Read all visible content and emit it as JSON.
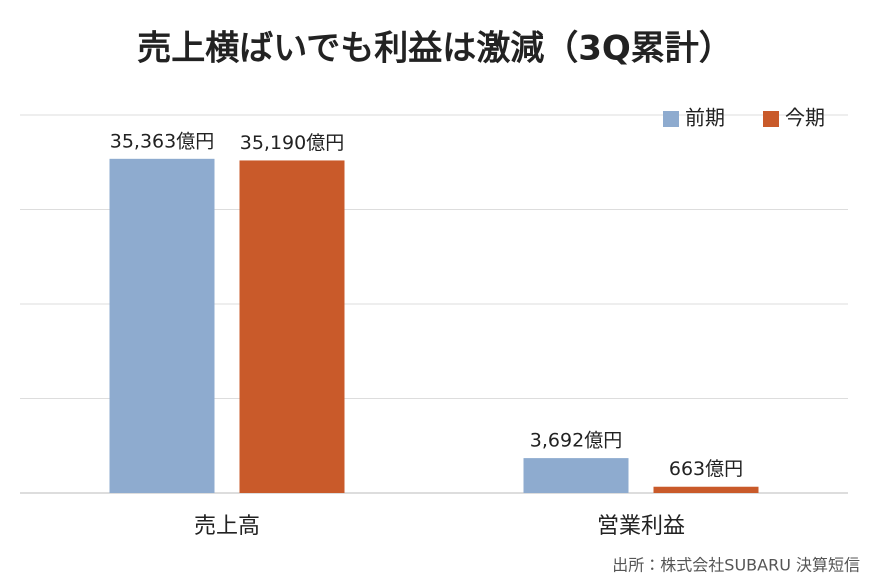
{
  "chart_data": {
    "type": "bar",
    "title": "売上横ばいでも利益は激減（3Q累計）",
    "categories": [
      "売上高",
      "営業利益"
    ],
    "series": [
      {
        "name": "前期",
        "color": "#8eabcf",
        "values": [
          35363,
          3692
        ],
        "value_labels": [
          "35,363億円",
          "3,692億円"
        ]
      },
      {
        "name": "今期",
        "color": "#c95a2a",
        "values": [
          35190,
          663
        ],
        "value_labels": [
          "35,190億円",
          "663億円"
        ]
      }
    ],
    "ylim": [
      0,
      40000
    ],
    "yticks": [
      0,
      10000,
      20000,
      30000,
      40000
    ],
    "grid": true,
    "legend": "top-right",
    "source": "出所：株式会社SUBARU 決算短信"
  }
}
